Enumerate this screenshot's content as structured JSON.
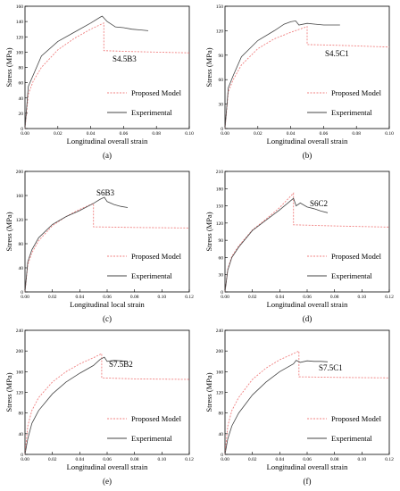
{
  "chart_data": [
    {
      "type": "line",
      "panel_label": "(a)",
      "annotation": "S4.5B3",
      "xlabel": "Longitudinal overall strain",
      "ylabel": "Stress (MPa)",
      "xlim": [
        0,
        0.1
      ],
      "ylim": [
        0,
        160
      ],
      "xticks": [
        0.0,
        0.02,
        0.04,
        0.06,
        0.08,
        0.1
      ],
      "xtick_labels": [
        "0.00",
        "0.02",
        "0.04",
        "0.06",
        "0.08",
        "0.10"
      ],
      "yticks": [
        0,
        20,
        40,
        60,
        80,
        100,
        120,
        140,
        160
      ],
      "ytick_labels": [
        "0",
        "20",
        "40",
        "60",
        "80",
        "100",
        "120",
        "140",
        "160"
      ],
      "grid": false,
      "legend_position": "bottom-right",
      "series": [
        {
          "name": "Proposed Model",
          "color": "#f08080",
          "dashed": true,
          "x": [
            0,
            0.002,
            0.005,
            0.01,
            0.02,
            0.03,
            0.04,
            0.048,
            0.048,
            0.06,
            0.08,
            0.1
          ],
          "y": [
            0,
            45,
            62,
            80,
            103,
            118,
            130,
            138,
            102,
            101,
            100,
            99
          ]
        },
        {
          "name": "Experimental",
          "color": "#444444",
          "dashed": false,
          "x": [
            0,
            0.002,
            0.005,
            0.01,
            0.02,
            0.03,
            0.04,
            0.046,
            0.047,
            0.05,
            0.055,
            0.06,
            0.065,
            0.07,
            0.075
          ],
          "y": [
            0,
            55,
            70,
            95,
            114,
            126,
            138,
            146,
            147,
            140,
            133,
            132,
            130,
            129,
            128
          ]
        }
      ]
    },
    {
      "type": "line",
      "panel_label": "(b)",
      "annotation": "S4.5C1",
      "xlabel": "Longitudinal overall strain",
      "ylabel": "Stress (MPa)",
      "xlim": [
        0,
        0.1
      ],
      "ylim": [
        0,
        150
      ],
      "xticks": [
        0.0,
        0.02,
        0.04,
        0.06,
        0.08,
        0.1
      ],
      "xtick_labels": [
        "0.00",
        "0.02",
        "0.04",
        "0.06",
        "0.08",
        "0.10"
      ],
      "yticks": [
        0,
        30,
        60,
        90,
        120,
        150
      ],
      "ytick_labels": [
        "0",
        "30",
        "60",
        "90",
        "120",
        "150"
      ],
      "grid": false,
      "legend_position": "bottom-right",
      "series": [
        {
          "name": "Proposed Model",
          "color": "#f08080",
          "dashed": true,
          "x": [
            0,
            0.002,
            0.005,
            0.01,
            0.02,
            0.03,
            0.04,
            0.05,
            0.05,
            0.07,
            0.1
          ],
          "y": [
            0,
            45,
            60,
            78,
            98,
            110,
            118,
            125,
            103,
            102,
            100
          ]
        },
        {
          "name": "Experimental",
          "color": "#444444",
          "dashed": false,
          "x": [
            0,
            0.002,
            0.005,
            0.01,
            0.02,
            0.03,
            0.036,
            0.04,
            0.043,
            0.045,
            0.05,
            0.055,
            0.06,
            0.065,
            0.07
          ],
          "y": [
            0,
            50,
            65,
            88,
            108,
            120,
            128,
            131,
            132,
            127,
            129,
            128,
            127,
            127,
            127
          ]
        }
      ]
    },
    {
      "type": "line",
      "panel_label": "(c)",
      "annotation": "S6B3",
      "xlabel": "Longitudinal local strain",
      "ylabel": "Stress (MPa)",
      "xlim": [
        0,
        0.12
      ],
      "ylim": [
        0,
        200
      ],
      "xticks": [
        0.0,
        0.02,
        0.04,
        0.06,
        0.08,
        0.1,
        0.12
      ],
      "xtick_labels": [
        "0.00",
        "0.02",
        "0.04",
        "0.06",
        "0.08",
        "0.10",
        "0.12"
      ],
      "yticks": [
        0,
        40,
        80,
        120,
        160,
        200
      ],
      "ytick_labels": [
        "0",
        "40",
        "80",
        "120",
        "160",
        "200"
      ],
      "grid": false,
      "legend_position": "bottom-right",
      "series": [
        {
          "name": "Proposed Model",
          "color": "#f08080",
          "dashed": true,
          "x": [
            0,
            0.002,
            0.005,
            0.01,
            0.02,
            0.03,
            0.04,
            0.05,
            0.05,
            0.08,
            0.12
          ],
          "y": [
            0,
            45,
            65,
            85,
            110,
            125,
            137,
            147,
            108,
            107,
            106
          ]
        },
        {
          "name": "Experimental",
          "color": "#444444",
          "dashed": false,
          "x": [
            0,
            0.002,
            0.005,
            0.01,
            0.02,
            0.03,
            0.04,
            0.05,
            0.055,
            0.058,
            0.06,
            0.065,
            0.07,
            0.075
          ],
          "y": [
            0,
            50,
            70,
            90,
            112,
            125,
            135,
            147,
            154,
            157,
            150,
            145,
            142,
            140
          ]
        }
      ]
    },
    {
      "type": "line",
      "panel_label": "(d)",
      "annotation": "S6C2",
      "xlabel": "Longitudinal overall strain",
      "ylabel": "Stress (MPa)",
      "xlim": [
        0,
        0.12
      ],
      "ylim": [
        0,
        210
      ],
      "xticks": [
        0.0,
        0.02,
        0.04,
        0.06,
        0.08,
        0.1,
        0.12
      ],
      "xtick_labels": [
        "0.00",
        "0.02",
        "0.04",
        "0.06",
        "0.08",
        "0.10",
        "0.12"
      ],
      "yticks": [
        0,
        30,
        60,
        90,
        120,
        150,
        180,
        210
      ],
      "ytick_labels": [
        "0",
        "30",
        "60",
        "90",
        "120",
        "150",
        "180",
        "210"
      ],
      "grid": false,
      "legend_position": "bottom-right",
      "series": [
        {
          "name": "Proposed Model",
          "color": "#f08080",
          "dashed": true,
          "x": [
            0,
            0.002,
            0.005,
            0.01,
            0.02,
            0.03,
            0.04,
            0.05,
            0.05,
            0.08,
            0.12
          ],
          "y": [
            0,
            40,
            62,
            80,
            108,
            127,
            147,
            172,
            117,
            115,
            113
          ]
        },
        {
          "name": "Experimental",
          "color": "#444444",
          "dashed": false,
          "x": [
            0,
            0.002,
            0.005,
            0.01,
            0.02,
            0.03,
            0.04,
            0.05,
            0.052,
            0.055,
            0.06,
            0.065,
            0.07,
            0.075
          ],
          "y": [
            0,
            38,
            60,
            78,
            107,
            125,
            143,
            163,
            150,
            155,
            148,
            145,
            141,
            138
          ]
        }
      ]
    },
    {
      "type": "line",
      "panel_label": "(e)",
      "annotation": "S7.5B2",
      "xlabel": "Longitudinal overall strain",
      "ylabel": "Stress (MPa)",
      "xlim": [
        0,
        0.12
      ],
      "ylim": [
        0,
        240
      ],
      "xticks": [
        0.0,
        0.02,
        0.04,
        0.06,
        0.08,
        0.1,
        0.12
      ],
      "xtick_labels": [
        "0.00",
        "0.02",
        "0.04",
        "0.06",
        "0.08",
        "0.10",
        "0.12"
      ],
      "yticks": [
        0,
        40,
        80,
        120,
        160,
        200,
        240
      ],
      "ytick_labels": [
        "0",
        "40",
        "80",
        "120",
        "160",
        "200",
        "240"
      ],
      "grid": false,
      "legend_position": "bottom-right",
      "series": [
        {
          "name": "Proposed Model",
          "color": "#f08080",
          "dashed": true,
          "x": [
            0,
            0.002,
            0.005,
            0.01,
            0.02,
            0.03,
            0.04,
            0.05,
            0.056,
            0.056,
            0.08,
            0.12
          ],
          "y": [
            0,
            55,
            85,
            110,
            140,
            160,
            175,
            187,
            195,
            148,
            146,
            145
          ]
        },
        {
          "name": "Experimental",
          "color": "#444444",
          "dashed": false,
          "x": [
            0,
            0.002,
            0.005,
            0.01,
            0.02,
            0.03,
            0.04,
            0.05,
            0.055,
            0.058,
            0.06,
            0.065,
            0.07,
            0.075
          ],
          "y": [
            0,
            30,
            60,
            85,
            117,
            140,
            157,
            172,
            184,
            188,
            180,
            182,
            181,
            180
          ]
        }
      ]
    },
    {
      "type": "line",
      "panel_label": "(f)",
      "annotation": "S7.5C1",
      "xlabel": "Longitudinal overall strain",
      "ylabel": "Stress (MPa)",
      "xlim": [
        0,
        0.12
      ],
      "ylim": [
        0,
        240
      ],
      "xticks": [
        0.0,
        0.02,
        0.04,
        0.06,
        0.08,
        0.1,
        0.12
      ],
      "xtick_labels": [
        "0.00",
        "0.02",
        "0.04",
        "0.06",
        "0.08",
        "0.10",
        "0.12"
      ],
      "yticks": [
        0,
        40,
        80,
        120,
        160,
        200,
        240
      ],
      "ytick_labels": [
        "0",
        "40",
        "80",
        "120",
        "160",
        "200",
        "240"
      ],
      "grid": false,
      "legend_position": "bottom-right",
      "series": [
        {
          "name": "Proposed Model",
          "color": "#f08080",
          "dashed": true,
          "x": [
            0,
            0.002,
            0.005,
            0.01,
            0.02,
            0.03,
            0.04,
            0.05,
            0.054,
            0.054,
            0.08,
            0.12
          ],
          "y": [
            0,
            55,
            85,
            110,
            145,
            167,
            183,
            195,
            200,
            150,
            149,
            148
          ]
        },
        {
          "name": "Experimental",
          "color": "#444444",
          "dashed": false,
          "x": [
            0,
            0.002,
            0.005,
            0.01,
            0.02,
            0.03,
            0.04,
            0.05,
            0.052,
            0.055,
            0.06,
            0.065,
            0.07,
            0.075
          ],
          "y": [
            0,
            30,
            55,
            80,
            115,
            140,
            160,
            175,
            182,
            178,
            181,
            180,
            180,
            179
          ]
        }
      ]
    }
  ]
}
